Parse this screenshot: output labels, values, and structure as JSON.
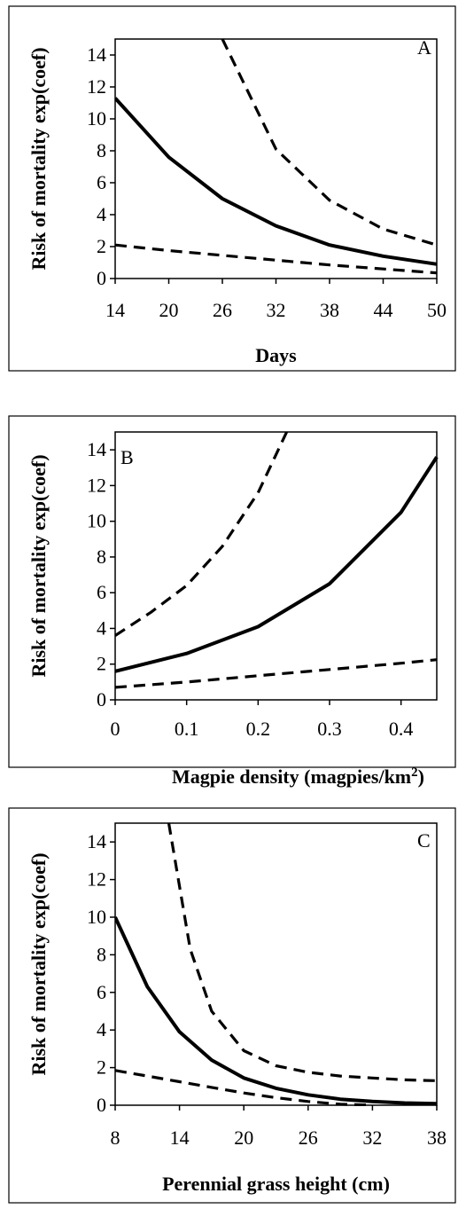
{
  "chart_data": [
    {
      "type": "line",
      "panel_label": "A",
      "xlabel": "Days",
      "ylabel": "Risk of mortality exp(coef)",
      "xlim": [
        14,
        50
      ],
      "ylim": [
        0,
        15
      ],
      "x_ticks": [
        "14",
        "20",
        "26",
        "32",
        "38",
        "44",
        "50"
      ],
      "y_ticks": [
        "0",
        "2",
        "4",
        "6",
        "8",
        "10",
        "12",
        "14"
      ],
      "series": [
        {
          "style": "solid",
          "x": [
            14,
            20,
            26,
            32,
            38,
            44,
            50
          ],
          "values": [
            11.3,
            7.6,
            5.0,
            3.3,
            2.1,
            1.4,
            0.9
          ]
        },
        {
          "style": "dashed",
          "x": [
            26,
            32,
            38,
            44,
            50
          ],
          "values": [
            15.0,
            8.1,
            4.9,
            3.1,
            2.1
          ]
        },
        {
          "style": "dashed",
          "x": [
            14,
            20,
            26,
            32,
            38,
            44,
            50
          ],
          "values": [
            2.1,
            1.75,
            1.45,
            1.15,
            0.85,
            0.6,
            0.35
          ]
        }
      ]
    },
    {
      "type": "line",
      "panel_label": "B",
      "xlabel": "Magpie density (magpies/km²)",
      "ylabel": "Risk of mortality exp(coef)",
      "xlim": [
        0,
        0.45
      ],
      "ylim": [
        0,
        15
      ],
      "x_ticks": [
        "0",
        "0.1",
        "0.2",
        "0.3",
        "0.4"
      ],
      "y_ticks": [
        "0",
        "2",
        "4",
        "6",
        "8",
        "10",
        "12",
        "14"
      ],
      "series": [
        {
          "style": "solid",
          "x": [
            0,
            0.1,
            0.2,
            0.3,
            0.4,
            0.45
          ],
          "values": [
            1.6,
            2.6,
            4.1,
            6.5,
            10.5,
            13.6
          ]
        },
        {
          "style": "dashed",
          "x": [
            0,
            0.05,
            0.1,
            0.15,
            0.2,
            0.24
          ],
          "values": [
            3.6,
            4.9,
            6.4,
            8.6,
            11.6,
            15.0
          ]
        },
        {
          "style": "dashed",
          "x": [
            0,
            0.1,
            0.2,
            0.3,
            0.4,
            0.45
          ],
          "values": [
            0.7,
            1.0,
            1.35,
            1.7,
            2.05,
            2.25
          ]
        }
      ]
    },
    {
      "type": "line",
      "panel_label": "C",
      "xlabel": "Perennial grass height (cm)",
      "ylabel": "Risk of mortality exp(coef)",
      "xlim": [
        8,
        38
      ],
      "ylim": [
        0,
        15
      ],
      "x_ticks": [
        "8",
        "14",
        "20",
        "26",
        "32",
        "38"
      ],
      "y_ticks": [
        "0",
        "2",
        "4",
        "6",
        "8",
        "10",
        "12",
        "14"
      ],
      "series": [
        {
          "style": "solid",
          "x": [
            8,
            11,
            14,
            17,
            20,
            23,
            26,
            29,
            32,
            35,
            38
          ],
          "values": [
            10.0,
            6.3,
            3.9,
            2.4,
            1.45,
            0.9,
            0.55,
            0.32,
            0.2,
            0.12,
            0.08
          ]
        },
        {
          "style": "dashed",
          "x": [
            13,
            15,
            17,
            20,
            23,
            26,
            29,
            32,
            35,
            38
          ],
          "values": [
            15.0,
            8.3,
            5.0,
            2.9,
            2.1,
            1.75,
            1.55,
            1.45,
            1.35,
            1.3
          ]
        },
        {
          "style": "dashed",
          "x": [
            8,
            11,
            14,
            17,
            20,
            23,
            26,
            29,
            32
          ],
          "values": [
            1.85,
            1.55,
            1.25,
            0.95,
            0.65,
            0.4,
            0.2,
            0.05,
            0.0
          ]
        }
      ]
    }
  ]
}
